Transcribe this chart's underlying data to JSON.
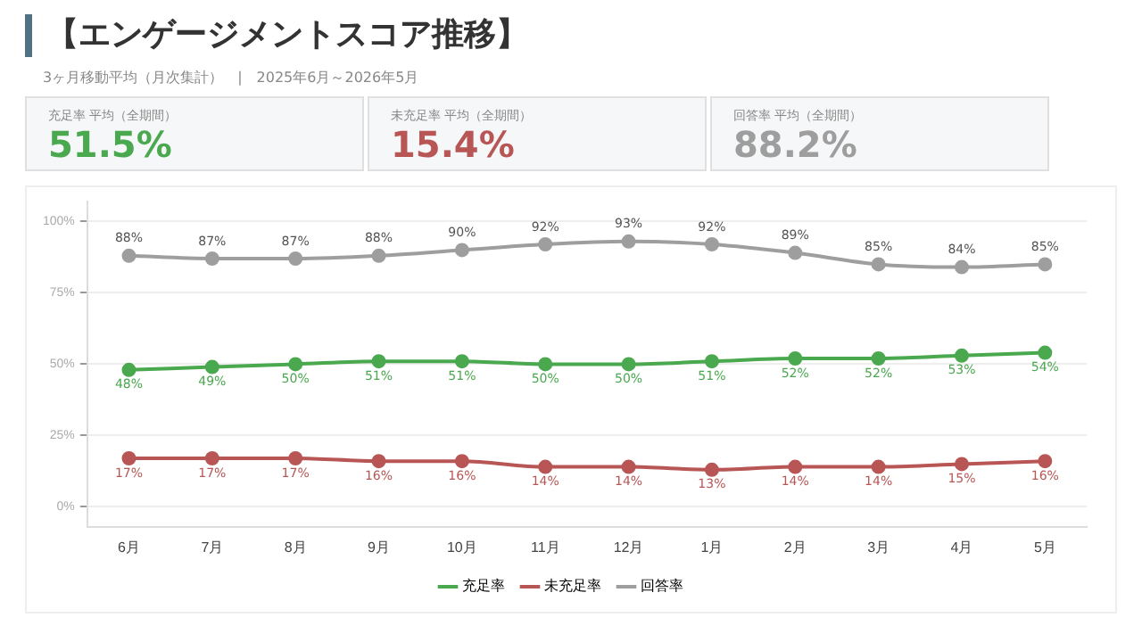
{
  "chart_data": [
    {
      "type": "other",
      "title": "【エンゲージメントスコア推移】",
      "subtitle": "3ヶ月移動平均（月次集計）　|　2025年6月～2026年5月",
      "annotations": [
        "充足率 平均（全期間）",
        "51.5%",
        "未充足率 平均（全期間）",
        "15.4%",
        "回答率 平均（全期間）",
        "88.2%"
      ]
    },
    {
      "type": "line",
      "categories": [
        "6月",
        "7月",
        "8月",
        "9月",
        "10月",
        "11月",
        "12月",
        "1月",
        "2月",
        "3月",
        "4月",
        "5月"
      ],
      "series": [
        {
          "name": "充足率",
          "color": "#4aa84f",
          "values": [
            48,
            49,
            50,
            51,
            51,
            50,
            50,
            51,
            52,
            52,
            53,
            54
          ],
          "value_labels": [
            "48%",
            "49%",
            "50%",
            "51%",
            "51%",
            "50%",
            "50%",
            "51%",
            "52%",
            "52%",
            "53%",
            "54%"
          ]
        },
        {
          "name": "未充足率",
          "color": "#b85555",
          "values": [
            17,
            17,
            17,
            16,
            16,
            14,
            14,
            13,
            14,
            14,
            15,
            16
          ],
          "value_labels": [
            "17%",
            "17%",
            "17%",
            "16%",
            "16%",
            "14%",
            "14%",
            "13%",
            "14%",
            "14%",
            "15%",
            "16%"
          ]
        },
        {
          "name": "回答率",
          "color": "#9e9e9e",
          "values": [
            88,
            87,
            87,
            88,
            90,
            92,
            93,
            92,
            89,
            85,
            84,
            85
          ],
          "value_labels": [
            "88%",
            "87%",
            "87%",
            "88%",
            "90%",
            "92%",
            "93%",
            "92%",
            "89%",
            "85%",
            "84%",
            "85%"
          ]
        }
      ],
      "ylim": [
        -7,
        107
      ],
      "yticks": [
        {
          "value": 0,
          "label": "0%"
        },
        {
          "value": 25,
          "label": "25%"
        },
        {
          "value": 50,
          "label": "50%"
        },
        {
          "value": 75,
          "label": "75%"
        },
        {
          "value": 100,
          "label": "100%"
        }
      ],
      "grid": "y",
      "legend": "bottom",
      "marker": "circle",
      "line_style": "solid"
    }
  ]
}
